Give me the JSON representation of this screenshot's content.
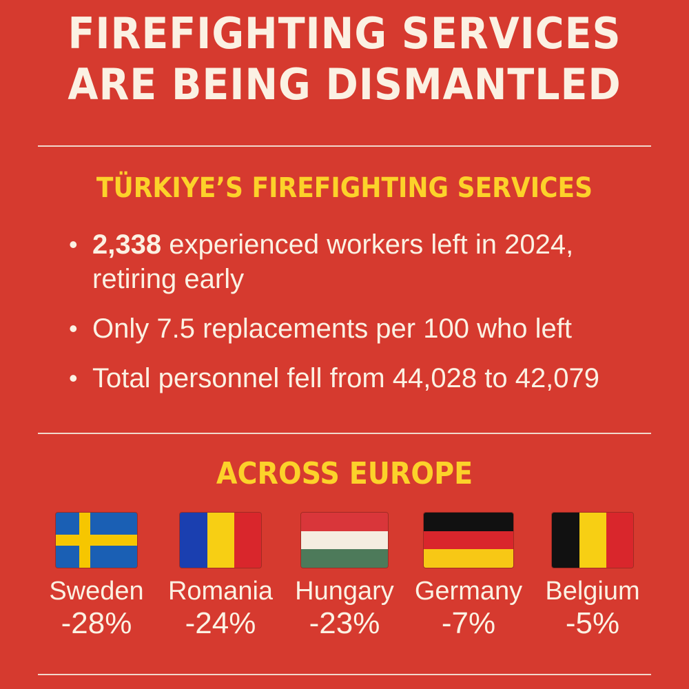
{
  "title": {
    "line1": "FIREFIGHTING SERVICES",
    "line2": "ARE BEING DISMANTLED"
  },
  "turkiye": {
    "heading": "TÜRKIYE’S FIREFIGHTING SERVICES",
    "bullets": [
      {
        "bold": "2,338",
        "text": " experienced workers left in 2024, retiring early"
      },
      {
        "bold": "",
        "text": "Only 7.5 replacements per 100 who left"
      },
      {
        "bold": "",
        "text": "Total personnel fell from 44,028 to 42,079"
      }
    ]
  },
  "europe": {
    "heading": "ACROSS EUROPE",
    "countries": [
      {
        "name": "Sweden",
        "change": "-28%",
        "flag": "sweden-flag-icon"
      },
      {
        "name": "Romania",
        "change": "-24%",
        "flag": "romania-flag-icon"
      },
      {
        "name": "Hungary",
        "change": "-23%",
        "flag": "hungary-flag-icon"
      },
      {
        "name": "Germany",
        "change": "-7%",
        "flag": "germany-flag-icon"
      },
      {
        "name": "Belgium",
        "change": "-5%",
        "flag": "belgium-flag-icon"
      }
    ]
  },
  "colors": {
    "background": "#d63a2f",
    "heading": "#fcd22a",
    "text": "#fbf1e3"
  }
}
